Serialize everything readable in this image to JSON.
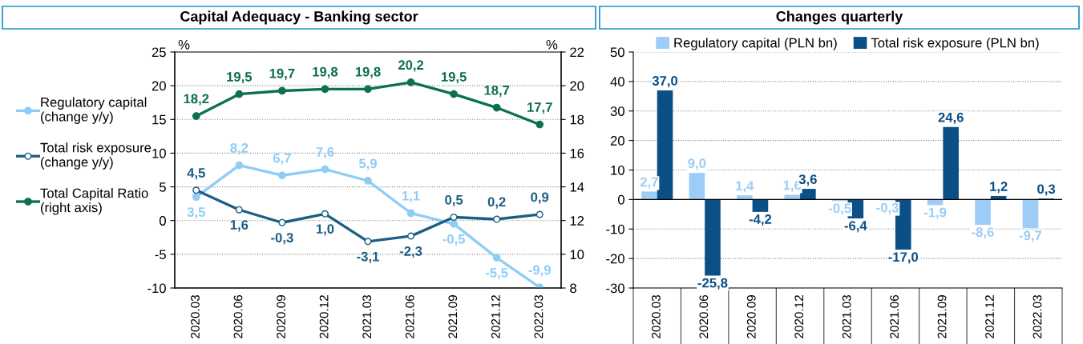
{
  "chart_data": [
    {
      "type": "line",
      "title": "Capital Adequacy - Banking sector",
      "categories": [
        "2020.03",
        "2020.06",
        "2020.09",
        "2020.12",
        "2021.03",
        "2021.06",
        "2021.09",
        "2021.12",
        "2022.03"
      ],
      "series": [
        {
          "name": "Regulatory capital\n(change y/y)",
          "color": "#8ecdf5",
          "marker": "circle",
          "values": [
            3.5,
            8.2,
            6.7,
            7.6,
            5.9,
            1.1,
            -0.5,
            -5.5,
            -9.9
          ],
          "value_labels": [
            "3,5",
            "8,2",
            "6,7",
            "7,6",
            "5,9",
            "1,1",
            "-0,5",
            "-5,5",
            "-9,9"
          ]
        },
        {
          "name": "Total risk exposure\n(change y/y)",
          "color": "#1b5e84",
          "marker": "circle",
          "values": [
            4.5,
            1.6,
            -0.3,
            1.0,
            -3.1,
            -2.3,
            0.5,
            0.2,
            0.9
          ],
          "value_labels": [
            "4,5",
            "1,6",
            "-0,3",
            "1,0",
            "-3,1",
            "-2,3",
            "0,5",
            "0,2",
            "0,9"
          ]
        },
        {
          "name": "Total Capital Ratio\n(right axis)",
          "color": "#0d7050",
          "marker": "circle",
          "axis": "y2",
          "values": [
            18.2,
            19.5,
            19.7,
            19.8,
            19.8,
            20.2,
            19.5,
            18.7,
            17.7
          ],
          "value_labels": [
            "18,2",
            "19,5",
            "19,7",
            "19,8",
            "19,8",
            "20,2",
            "19,5",
            "18,7",
            "17,7"
          ]
        }
      ],
      "ylim": [
        -10,
        25
      ],
      "yticks": [
        -10,
        -5,
        0,
        5,
        10,
        15,
        20,
        25
      ],
      "y2lim": [
        8,
        22
      ],
      "y2ticks": [
        8,
        10,
        12,
        14,
        16,
        18,
        20,
        22
      ],
      "annotations": [
        "%",
        "%"
      ],
      "grid": "y",
      "legend": "left",
      "line_style": "solid"
    },
    {
      "type": "bar",
      "title": "Changes quarterly",
      "categories": [
        "2020.03",
        "2020.06",
        "2020.09",
        "2020.12",
        "2021.03",
        "2021.06",
        "2021.09",
        "2021.12",
        "2022.03"
      ],
      "series": [
        {
          "name": "Regulatory capital (PLN bn)",
          "color": "#9dcdf6",
          "values": [
            2.7,
            9.0,
            1.4,
            1.6,
            -0.5,
            -0.3,
            -1.9,
            -8.6,
            -9.7
          ],
          "value_labels": [
            "2,7",
            "9,0",
            "1,4",
            "1,6",
            "-0,5",
            "-0,3",
            "-1,9",
            "-8,6",
            "-9,7"
          ]
        },
        {
          "name": "Total risk exposure (PLN bn)",
          "color": "#0a4f86",
          "values": [
            37.0,
            -25.8,
            -4.2,
            3.6,
            -6.4,
            -17.0,
            24.6,
            1.2,
            0.3
          ],
          "value_labels": [
            "37,0",
            "-25,8",
            "-4,2",
            "3,6",
            "-6,4",
            "-17,0",
            "24,6",
            "1,2",
            "0,3"
          ]
        }
      ],
      "ylim": [
        -30,
        50
      ],
      "yticks": [
        -30,
        -20,
        -10,
        0,
        10,
        20,
        30,
        40,
        50
      ],
      "grid": "y",
      "legend": "top"
    }
  ]
}
